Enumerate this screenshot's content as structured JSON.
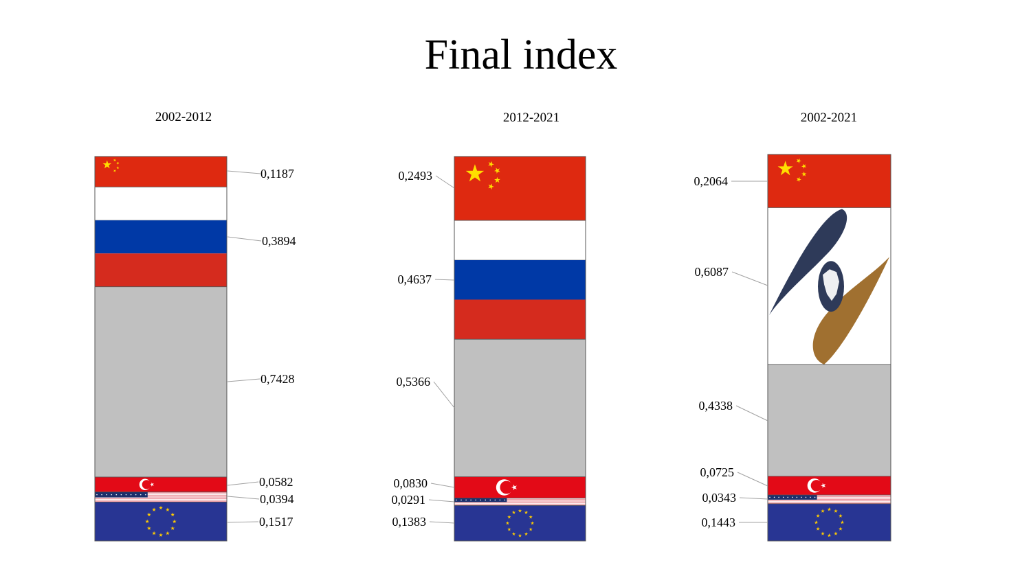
{
  "title": "Final index",
  "colors": {
    "china_red": "#de2910",
    "china_star": "#ffde00",
    "russia_white": "#ffffff",
    "russia_blue": "#0039a6",
    "russia_red": "#d52b1e",
    "other_gray": "#c0c0c0",
    "turkey_red": "#e30a17",
    "usa_red": "#e8858f",
    "usa_blue": "#1c2f6b",
    "eu_blue": "#283593",
    "eu_star": "#ffcc00",
    "eaeu_navy": "#2e3a59",
    "eaeu_gold": "#a07030"
  },
  "chart_data": [
    {
      "type": "bar",
      "stacked": true,
      "title": "2002-2012",
      "segments": [
        {
          "flag": "china-flag",
          "value": 0.1187,
          "label": "0,1187"
        },
        {
          "flag": "russia-flag",
          "value": 0.3894,
          "label": "0,3894"
        },
        {
          "flag": "gray",
          "value": 0.7428,
          "label": "0,7428"
        },
        {
          "flag": "turkey-flag",
          "value": 0.0582,
          "label": "0,0582"
        },
        {
          "flag": "usa-flag",
          "value": 0.0394,
          "label": "0,0394"
        },
        {
          "flag": "eu-flag",
          "value": 0.1517,
          "label": "0,1517"
        }
      ]
    },
    {
      "type": "bar",
      "stacked": true,
      "title": "2012-2021",
      "segments": [
        {
          "flag": "china-flag",
          "value": 0.2493,
          "label": "0,2493"
        },
        {
          "flag": "russia-flag",
          "value": 0.4637,
          "label": "0,4637"
        },
        {
          "flag": "gray",
          "value": 0.5366,
          "label": "0,5366"
        },
        {
          "flag": "turkey-flag",
          "value": 0.083,
          "label": "0,0830"
        },
        {
          "flag": "usa-flag",
          "value": 0.0291,
          "label": "0,0291"
        },
        {
          "flag": "eu-flag",
          "value": 0.1383,
          "label": "0,1383"
        }
      ]
    },
    {
      "type": "bar",
      "stacked": true,
      "title": "2002-2021",
      "segments": [
        {
          "flag": "china-flag",
          "value": 0.2064,
          "label": "0,2064"
        },
        {
          "flag": "eaeu-emblem",
          "value": 0.6087,
          "label": "0,6087"
        },
        {
          "flag": "gray",
          "value": 0.4338,
          "label": "0,4338"
        },
        {
          "flag": "turkey-flag",
          "value": 0.0725,
          "label": "0,0725"
        },
        {
          "flag": "usa-flag",
          "value": 0.0343,
          "label": "0,0343"
        },
        {
          "flag": "eu-flag",
          "value": 0.1443,
          "label": "0,1443"
        }
      ]
    }
  ]
}
